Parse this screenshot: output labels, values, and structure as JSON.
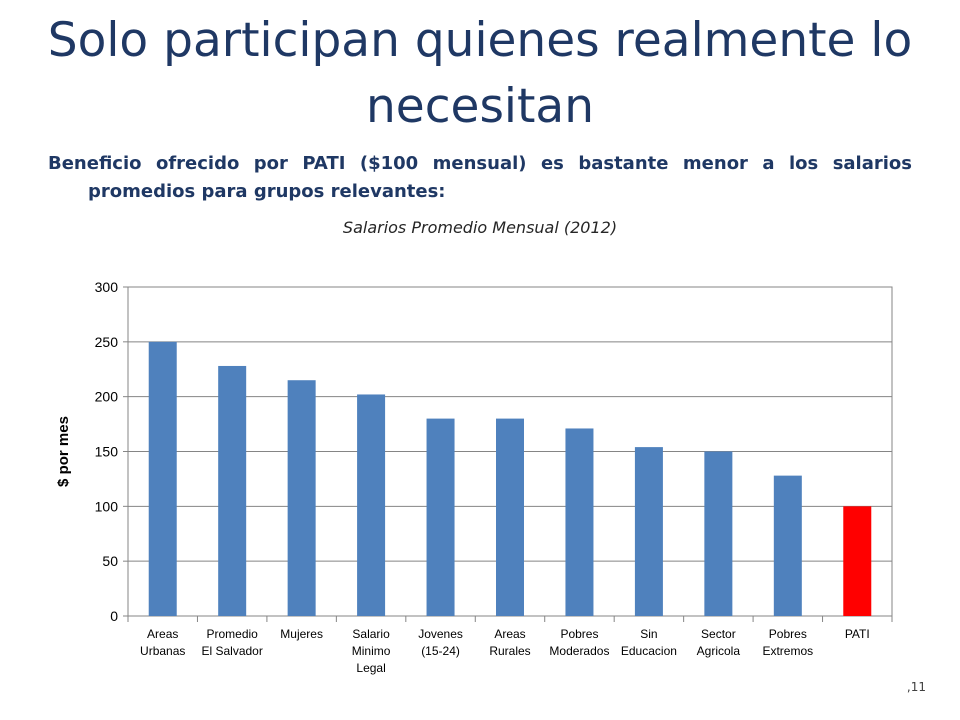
{
  "slide": {
    "title": "Solo participan quienes realmente lo necesitan",
    "subtitle": "Beneficio ofrecido por PATI ($100 mensual) es bastante menor a los salarios promedios para grupos relevantes:",
    "page_number": ",11"
  },
  "chart_data": {
    "type": "bar",
    "title": "Salarios Promedio Mensual (2012)",
    "ylabel": "$ por mes",
    "xlabel": "",
    "ylim": [
      0,
      300
    ],
    "yticks": [
      0,
      50,
      100,
      150,
      200,
      250,
      300
    ],
    "grid": true,
    "legend": false,
    "categories": [
      [
        "Areas",
        "Urbanas"
      ],
      [
        "Promedio",
        "El Salvador"
      ],
      [
        "Mujeres"
      ],
      [
        "Salario",
        "Minimo",
        "Legal"
      ],
      [
        "Jovenes",
        "(15-24)"
      ],
      [
        "Areas",
        "Rurales"
      ],
      [
        "Pobres",
        "Moderados"
      ],
      [
        "Sin",
        "Educacion"
      ],
      [
        "Sector",
        "Agricola"
      ],
      [
        "Pobres",
        "Extremos"
      ],
      [
        "PATI"
      ]
    ],
    "values": [
      250,
      228,
      215,
      202,
      180,
      180,
      171,
      154,
      150,
      128,
      100
    ],
    "colors": [
      "#4f81bd",
      "#4f81bd",
      "#4f81bd",
      "#4f81bd",
      "#4f81bd",
      "#4f81bd",
      "#4f81bd",
      "#4f81bd",
      "#4f81bd",
      "#4f81bd",
      "#ff0000"
    ]
  }
}
